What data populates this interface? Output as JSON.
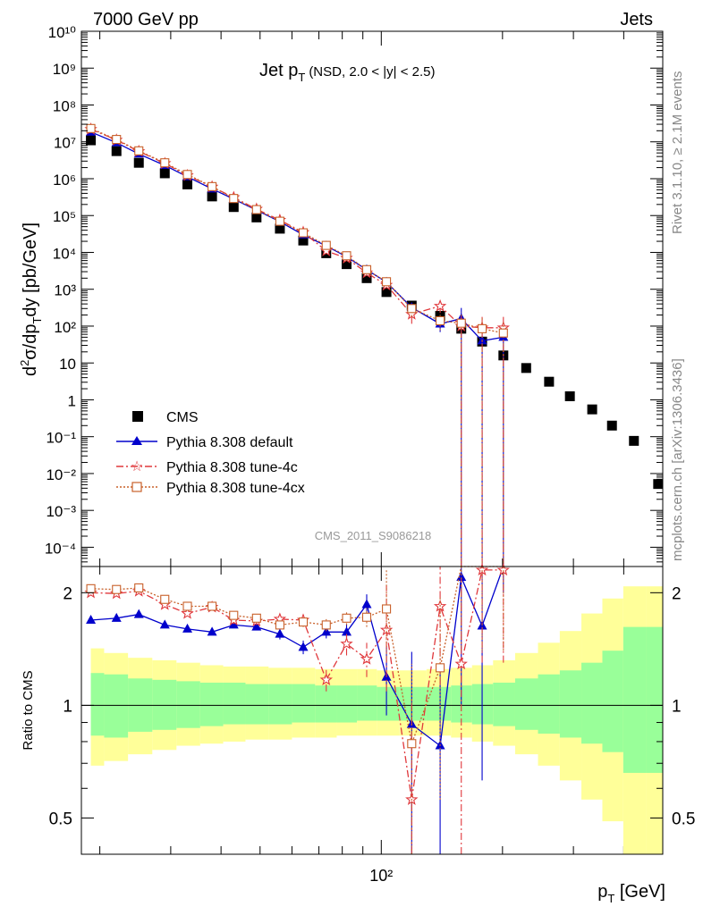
{
  "header": {
    "left": "7000 GeV pp",
    "right": "Jets"
  },
  "side_labels": {
    "rivet": "Rivet 3.1.10, ≥ 2.1M events",
    "mcplots": "mcplots.cern.ch [arXiv:1306.3436]"
  },
  "watermark": "CMS_2011_S9086218",
  "colors": {
    "cms": "#000000",
    "default": "#0000cc",
    "tune4c": "#e0383c",
    "tune4cx": "#c8602a",
    "band_inner": "#99ff99",
    "band_outer": "#ffff99"
  },
  "chart_data": [
    {
      "type": "scatter",
      "title_main": "Jet p",
      "title_sub": "T",
      "title_detail": "(NSD, 2.0 < |y| < 2.5)",
      "ylabel": "d²σ/dp_T dy [pb/GeV]",
      "yscale": "log",
      "ylim": [
        3e-05,
        10000000000.0
      ],
      "xscale": "log",
      "xlim": [
        18,
        500
      ],
      "ytick_labels": [
        "10⁻⁴",
        "10⁻³",
        "10⁻²",
        "10⁻¹",
        "1",
        "10",
        "10²",
        "10³",
        "10⁴",
        "10⁵",
        "10⁶",
        "10⁷",
        "10⁸",
        "10⁹",
        "10¹⁰"
      ],
      "legend": [
        "CMS",
        "Pythia 8.308 default",
        "Pythia 8.308 tune-4c",
        "Pythia 8.308 tune-4cx"
      ],
      "x": [
        19,
        22,
        25,
        29,
        33,
        38,
        43,
        49,
        56,
        64,
        73,
        82,
        92,
        103,
        119,
        140,
        158,
        178,
        201,
        229,
        261,
        294,
        334,
        374,
        424,
        487
      ],
      "series": [
        {
          "name": "CMS",
          "values": [
            11000000.0,
            5600000.0,
            2700000.0,
            1400000.0,
            700000.0,
            330000.0,
            170000.0,
            89000.0,
            44000.0,
            21000.0,
            9500.0,
            4800.0,
            2000.0,
            840.0,
            360.0,
            190.0,
            85.0,
            38.0,
            16.0,
            7.3,
            3.1,
            1.25,
            0.55,
            0.2,
            0.077,
            0.0052
          ]
        },
        {
          "name": "Pythia 8.308 default",
          "values": [
            18500000.0,
            9500000.0,
            4700000.0,
            2300000.0,
            1130000.0,
            530000.0,
            280000.0,
            140000.0,
            68000.0,
            30000.0,
            15000.0,
            7600.0,
            3400.0,
            1560.0,
            320.0,
            115.0,
            160.0,
            40.0,
            50.0
          ],
          "errors": [
            0,
            0,
            0,
            0,
            0,
            0,
            0,
            0,
            0,
            0,
            0,
            0,
            0,
            0,
            0.35,
            0.4,
            0.95,
            0.95,
            0.95
          ]
        },
        {
          "name": "Pythia 8.308 tune-4c",
          "values": [
            22000000.0,
            11200000.0,
            5500000.0,
            2600000.0,
            1220000.0,
            600000.0,
            310000.0,
            150000.0,
            75000.0,
            35000.0,
            11000.0,
            7000.0,
            2800.0,
            1300.0,
            210.0,
            350.0,
            100.0,
            90.0,
            90.0
          ],
          "errors": [
            0,
            0,
            0,
            0,
            0,
            0,
            0,
            0,
            0,
            0,
            0,
            0,
            0,
            0,
            0.45,
            0.35,
            0.98,
            0.98,
            0.98
          ]
        },
        {
          "name": "Pythia 8.308 tune-4cx",
          "values": [
            23000000.0,
            11600000.0,
            5700000.0,
            2700000.0,
            1300000.0,
            610000.0,
            290000.0,
            145000.0,
            70000.0,
            34000.0,
            15500.0,
            8100.0,
            3400.0,
            1600.0,
            300.0,
            140.0,
            120.0,
            85.0,
            65.0
          ],
          "errors": [
            0,
            0,
            0,
            0,
            0,
            0,
            0,
            0,
            0,
            0,
            0,
            0,
            0,
            0,
            0.4,
            0.45,
            0.95,
            0.95,
            0.95
          ]
        }
      ]
    },
    {
      "type": "line",
      "ylabel": "Ratio to CMS",
      "xlabel": "p_T [GeV]",
      "xtick_label": "10²",
      "ytick_labels": [
        "0.5",
        "1",
        "2"
      ],
      "yscale": "log",
      "ylim": [
        0.4,
        2.35
      ],
      "band_edges": [
        19,
        20.5,
        23.5,
        27,
        31,
        35.5,
        40.5,
        46,
        52.5,
        60,
        68.5,
        77.5,
        87,
        97.5,
        111,
        129.5,
        149,
        168,
        189.5,
        215,
        245,
        277.5,
        314,
        354,
        399,
        455,
        500
      ],
      "band_inner": [
        [
          0.83,
          1.22
        ],
        [
          0.82,
          1.21
        ],
        [
          0.85,
          1.18
        ],
        [
          0.86,
          1.17
        ],
        [
          0.87,
          1.16
        ],
        [
          0.88,
          1.15
        ],
        [
          0.89,
          1.15
        ],
        [
          0.89,
          1.14
        ],
        [
          0.89,
          1.14
        ],
        [
          0.9,
          1.14
        ],
        [
          0.9,
          1.13
        ],
        [
          0.9,
          1.13
        ],
        [
          0.91,
          1.13
        ],
        [
          0.91,
          1.12
        ],
        [
          0.91,
          1.12
        ],
        [
          0.91,
          1.12
        ],
        [
          0.9,
          1.13
        ],
        [
          0.89,
          1.14
        ],
        [
          0.88,
          1.15
        ],
        [
          0.86,
          1.18
        ],
        [
          0.84,
          1.21
        ],
        [
          0.82,
          1.24
        ],
        [
          0.79,
          1.3
        ],
        [
          0.75,
          1.4
        ],
        [
          0.66,
          1.62
        ],
        [
          0.66,
          1.62
        ]
      ],
      "band_outer": [
        [
          0.69,
          1.42
        ],
        [
          0.71,
          1.38
        ],
        [
          0.74,
          1.34
        ],
        [
          0.76,
          1.32
        ],
        [
          0.78,
          1.3
        ],
        [
          0.79,
          1.28
        ],
        [
          0.8,
          1.27
        ],
        [
          0.81,
          1.27
        ],
        [
          0.81,
          1.26
        ],
        [
          0.82,
          1.26
        ],
        [
          0.82,
          1.25
        ],
        [
          0.83,
          1.25
        ],
        [
          0.83,
          1.25
        ],
        [
          0.83,
          1.24
        ],
        [
          0.83,
          1.24
        ],
        [
          0.83,
          1.25
        ],
        [
          0.82,
          1.26
        ],
        [
          0.8,
          1.28
        ],
        [
          0.78,
          1.32
        ],
        [
          0.74,
          1.38
        ],
        [
          0.69,
          1.47
        ],
        [
          0.63,
          1.58
        ],
        [
          0.56,
          1.76
        ],
        [
          0.49,
          1.93
        ],
        [
          0.4,
          2.08
        ],
        [
          0.4,
          2.08
        ]
      ],
      "series": [
        {
          "name": "Pythia 8.308 default",
          "values": [
            1.69,
            1.71,
            1.75,
            1.64,
            1.6,
            1.57,
            1.64,
            1.62,
            1.55,
            1.43,
            1.57,
            1.57,
            1.86,
            1.19,
            0.89,
            0.78,
            2.2,
            1.63,
            3.0
          ],
          "errors": [
            0,
            0,
            0,
            0,
            0,
            0,
            0,
            0,
            0.05,
            0.06,
            0.06,
            0.08,
            0.12,
            0.25,
            0.5,
            0.45,
            1.2,
            1.0,
            1.0
          ]
        },
        {
          "name": "Pythia 8.308 tune-4c",
          "values": [
            2.0,
            1.99,
            2.02,
            1.86,
            1.76,
            1.83,
            1.69,
            1.68,
            1.7,
            1.69,
            1.17,
            1.46,
            1.33,
            1.59,
            0.56,
            1.84,
            1.29,
            2.3,
            2.3
          ],
          "errors": [
            0,
            0,
            0,
            0,
            0,
            0,
            0.04,
            0.04,
            0.05,
            0.06,
            0.08,
            0.1,
            0.14,
            0.5,
            0.5,
            0.7,
            0.9,
            1.0,
            1.0
          ]
        },
        {
          "name": "Pythia 8.308 tune-4cx",
          "values": [
            2.05,
            2.04,
            2.06,
            1.92,
            1.84,
            1.84,
            1.74,
            1.71,
            1.64,
            1.67,
            1.64,
            1.71,
            1.72,
            1.81,
            0.79,
            1.26,
            2.4,
            2.4,
            2.4
          ],
          "errors": [
            0,
            0,
            0,
            0,
            0,
            0,
            0,
            0,
            0.04,
            0.05,
            0.06,
            0.07,
            0.1,
            0.5,
            0.5,
            0.7,
            1.0,
            1.0,
            1.0
          ]
        }
      ]
    }
  ]
}
